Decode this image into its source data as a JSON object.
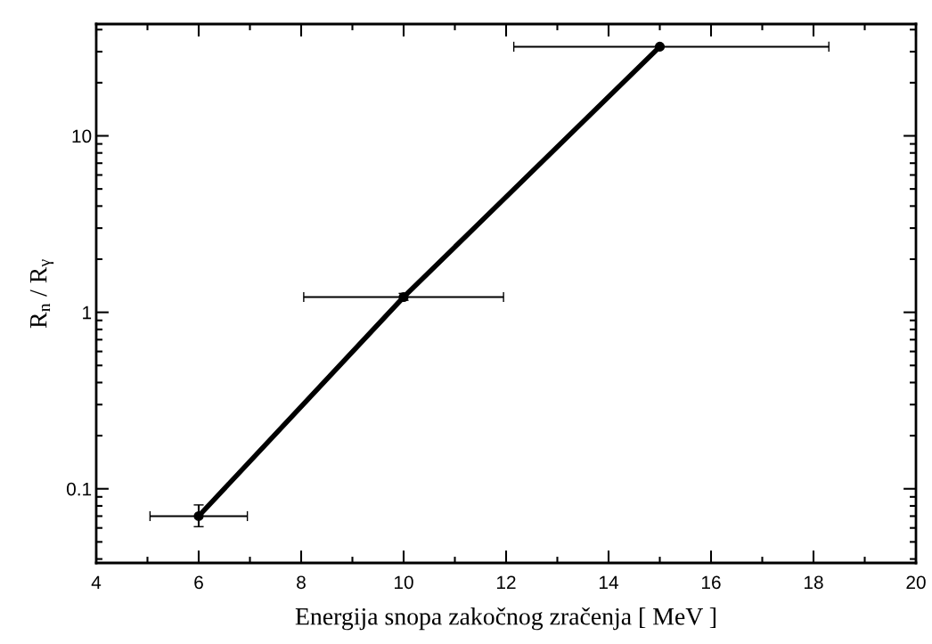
{
  "chart_data": {
    "type": "line",
    "xlabel": "Energija snopa zakočnog zračenja [ MeV ]",
    "ylabel": "R$_{n}$ / R$_{γ}$",
    "x": [
      6,
      10,
      15
    ],
    "series": [
      {
        "color": "#000000",
        "values": [
          0.07,
          1.22,
          32
        ],
        "errors": [
          [
            0.061,
            0.081
          ],
          [
            1.17,
            1.28
          ],
          null
        ],
        "xerrors": [
          [
            5.05,
            6.95
          ],
          [
            8.05,
            11.95
          ],
          [
            12.15,
            18.3
          ]
        ]
      }
    ],
    "log": "y",
    "xlim": [
      4,
      20
    ],
    "xticks": [
      4,
      6,
      8,
      10,
      12,
      14,
      16,
      18,
      20
    ],
    "ylim": [
      0.038,
      43
    ],
    "yticks": [
      {
        "value": 0.1,
        "label": "0.1"
      },
      1,
      10
    ],
    "marker": "circle",
    "line_style": "solid",
    "grid": false
  }
}
